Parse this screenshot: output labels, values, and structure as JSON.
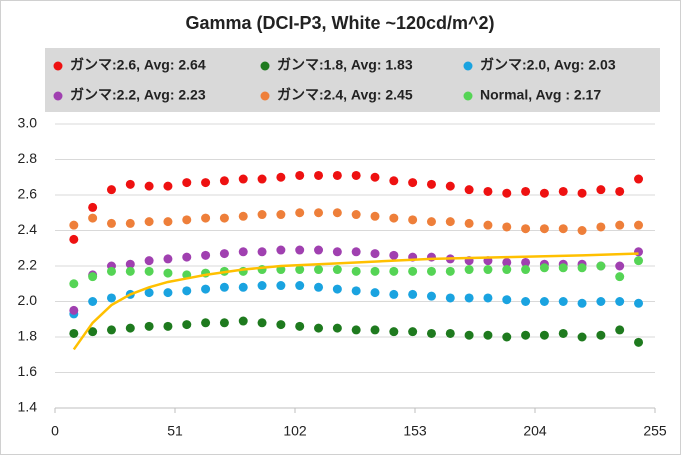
{
  "chart_data": {
    "type": "scatter",
    "title": "Gamma (DCI-P3, White ~120cd/m^2)",
    "x": [
      8,
      16,
      24,
      32,
      40,
      48,
      56,
      64,
      72,
      80,
      88,
      96,
      104,
      112,
      120,
      128,
      136,
      144,
      152,
      160,
      168,
      176,
      184,
      192,
      200,
      208,
      216,
      224,
      232,
      240,
      248
    ],
    "series": [
      {
        "name": "ガンマ:2.6, Avg: 2.64",
        "color": "#ee1111",
        "values": [
          2.35,
          2.53,
          2.63,
          2.66,
          2.65,
          2.65,
          2.67,
          2.67,
          2.68,
          2.69,
          2.69,
          2.7,
          2.71,
          2.71,
          2.71,
          2.71,
          2.7,
          2.68,
          2.67,
          2.66,
          2.65,
          2.63,
          2.62,
          2.61,
          2.62,
          2.61,
          2.62,
          2.61,
          2.63,
          2.62,
          2.69
        ]
      },
      {
        "name": "ガンマ:1.8, Avg: 1.83",
        "color": "#1e7a1e",
        "values": [
          1.82,
          1.83,
          1.84,
          1.85,
          1.86,
          1.86,
          1.87,
          1.88,
          1.88,
          1.89,
          1.88,
          1.87,
          1.86,
          1.85,
          1.85,
          1.84,
          1.84,
          1.83,
          1.83,
          1.82,
          1.82,
          1.81,
          1.81,
          1.8,
          1.81,
          1.81,
          1.82,
          1.8,
          1.81,
          1.84,
          1.77
        ]
      },
      {
        "name": "ガンマ:2.0, Avg: 2.03",
        "color": "#1aa3e0",
        "values": [
          1.93,
          2.0,
          2.02,
          2.04,
          2.05,
          2.05,
          2.06,
          2.07,
          2.08,
          2.08,
          2.09,
          2.09,
          2.09,
          2.08,
          2.07,
          2.06,
          2.05,
          2.04,
          2.04,
          2.03,
          2.02,
          2.02,
          2.02,
          2.01,
          2.0,
          2.0,
          2.0,
          1.99,
          2.0,
          2.0,
          1.99
        ]
      },
      {
        "name": "ガンマ:2.2, Avg: 2.23",
        "color": "#a040b0",
        "values": [
          1.95,
          2.15,
          2.2,
          2.21,
          2.23,
          2.24,
          2.25,
          2.26,
          2.27,
          2.28,
          2.28,
          2.29,
          2.29,
          2.29,
          2.28,
          2.28,
          2.27,
          2.26,
          2.25,
          2.25,
          2.24,
          2.23,
          2.23,
          2.22,
          2.22,
          2.21,
          2.21,
          2.21,
          2.2,
          2.2,
          2.28
        ]
      },
      {
        "name": "ガンマ:2.4, Avg: 2.45",
        "color": "#ee7f3a",
        "values": [
          2.43,
          2.47,
          2.44,
          2.44,
          2.45,
          2.45,
          2.46,
          2.47,
          2.47,
          2.48,
          2.49,
          2.49,
          2.5,
          2.5,
          2.5,
          2.49,
          2.48,
          2.47,
          2.46,
          2.45,
          2.45,
          2.44,
          2.43,
          2.42,
          2.41,
          2.41,
          2.41,
          2.4,
          2.42,
          2.43,
          2.43
        ]
      },
      {
        "name": "Normal, Avg : 2.17",
        "color": "#55d455",
        "values": [
          2.1,
          2.14,
          2.17,
          2.17,
          2.17,
          2.16,
          2.15,
          2.16,
          2.17,
          2.17,
          2.18,
          2.18,
          2.18,
          2.18,
          2.18,
          2.17,
          2.17,
          2.17,
          2.17,
          2.17,
          2.17,
          2.18,
          2.18,
          2.18,
          2.18,
          2.19,
          2.19,
          2.19,
          2.2,
          2.14,
          2.23
        ]
      },
      {
        "color": "#ffc000",
        "mode": "line",
        "x": [
          8,
          16,
          24,
          32,
          40,
          48,
          56,
          64,
          80,
          96,
          128,
          160,
          192,
          224,
          248
        ],
        "values": [
          1.73,
          1.88,
          1.98,
          2.04,
          2.08,
          2.11,
          2.13,
          2.15,
          2.18,
          2.2,
          2.22,
          2.24,
          2.25,
          2.26,
          2.27
        ]
      }
    ],
    "xlim": [
      0,
      255
    ],
    "xticks": [
      0,
      51,
      102,
      153,
      204,
      255
    ],
    "ylim": [
      1.4,
      3.0
    ],
    "yticks": [
      1.4,
      1.6,
      1.8,
      {
        "value": 2,
        "label": "2.0"
      },
      2.2,
      2.4,
      2.6,
      2.8,
      {
        "value": 3,
        "label": "3.0"
      }
    ],
    "grid": true
  }
}
